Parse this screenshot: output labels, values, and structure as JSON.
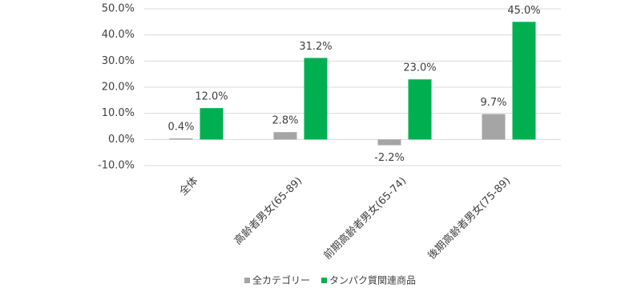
{
  "chart_data": {
    "type": "bar",
    "categories": [
      "全体",
      "高齢者男女(65-89)",
      "前期高齢者男女(65-74)",
      "後期高齢者男女(75-89)"
    ],
    "series": [
      {
        "name": "全カテゴリー",
        "color": "#a5a5a5",
        "values": [
          0.4,
          2.8,
          -2.2,
          9.7
        ],
        "value_labels": [
          "0.4%",
          "2.8%",
          "-2.2%",
          "9.7%"
        ]
      },
      {
        "name": "タンパク質関連商品",
        "color": "#00b050",
        "values": [
          12.0,
          31.2,
          23.0,
          45.0
        ],
        "value_labels": [
          "12.0%",
          "31.2%",
          "23.0%",
          "45.0%"
        ]
      }
    ],
    "ylim": [
      -10,
      50
    ],
    "yticks": [
      {
        "value": -10,
        "label": "-10.0%"
      },
      {
        "value": 0,
        "label": "0.0%"
      },
      {
        "value": 10,
        "label": "10.0%"
      },
      {
        "value": 20,
        "label": "20.0%"
      },
      {
        "value": 30,
        "label": "30.0%"
      },
      {
        "value": 40,
        "label": "40.0%"
      },
      {
        "value": 50,
        "label": "50.0%"
      }
    ],
    "grid": true,
    "legend": "bottom"
  }
}
